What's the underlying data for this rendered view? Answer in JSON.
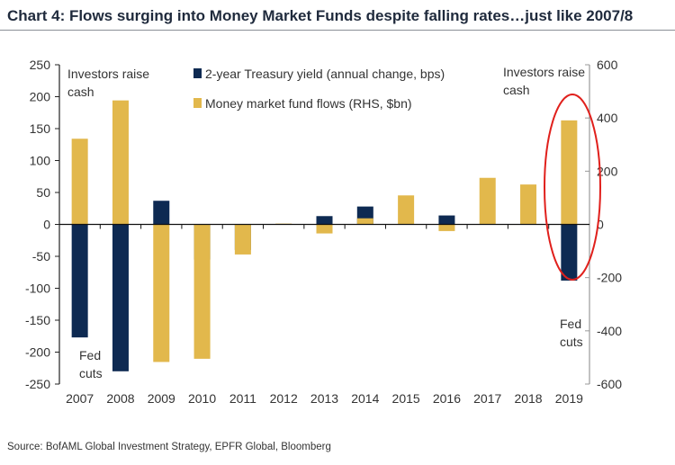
{
  "chart_data": {
    "type": "bar",
    "title": "Chart 4: Flows surging into Money Market Funds despite falling rates…just like 2007/8",
    "source": "Source: BofAML Global Investment Strategy, EPFR Global, Bloomberg",
    "categories": [
      "2007",
      "2008",
      "2009",
      "2010",
      "2011",
      "2012",
      "2013",
      "2014",
      "2015",
      "2016",
      "2017",
      "2018",
      "2019"
    ],
    "series": [
      {
        "name": "2-year Treasury yield (annual change, bps)",
        "axis": "left",
        "color": "#0e2a52",
        "values": [
          -177,
          -230,
          37,
          -55,
          -40,
          0,
          13,
          28,
          0,
          14,
          0,
          0,
          -88
        ]
      },
      {
        "name": "Money market fund flows (RHS, $bn)",
        "axis": "right",
        "color": "#e2b84c",
        "values": [
          322,
          466,
          -517,
          -505,
          -113,
          3,
          -34,
          23,
          109,
          -25,
          175,
          150,
          391
        ]
      }
    ],
    "yleft": {
      "range": [
        -250,
        250
      ],
      "ticks": [
        "250",
        "200",
        "150",
        "100",
        "50",
        "0",
        "-50",
        "-100",
        "-150",
        "-200",
        "-250"
      ]
    },
    "yright": {
      "range": [
        -600,
        600
      ],
      "ticks": [
        "600",
        "400",
        "200",
        "0",
        "-200",
        "-400",
        "-600"
      ]
    },
    "legend_placement": "top-center",
    "grid": false,
    "annotations": {
      "left_top": [
        "Investors raise",
        "cash"
      ],
      "left_bottom": [
        "Fed",
        "cuts"
      ],
      "right_top": [
        "Investors raise",
        "cash"
      ],
      "right_bottom": [
        "Fed",
        "cuts"
      ],
      "highlight_color": "#e0201c"
    }
  }
}
